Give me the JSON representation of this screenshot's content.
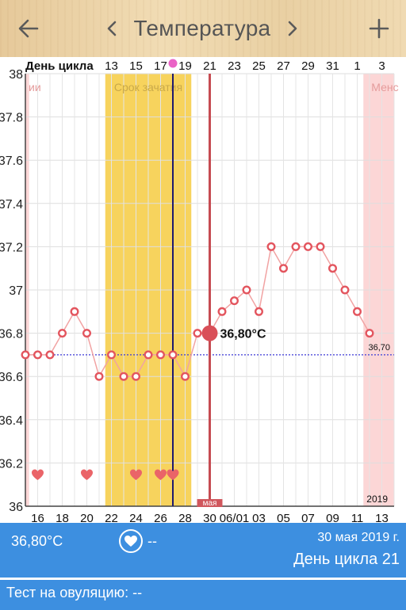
{
  "header": {
    "title": "Температура",
    "back_icon": "arrow-left-icon",
    "prev_icon": "chevron-left-icon",
    "next_icon": "chevron-right-icon",
    "add_icon": "plus-icon"
  },
  "chart_data": {
    "type": "line",
    "top_axis_label": "День цикла",
    "top_ticks": [
      "13",
      "15",
      "17",
      "19",
      "21",
      "23",
      "25",
      "27",
      "29",
      "31",
      "1",
      "3"
    ],
    "bottom_ticks": [
      "16",
      "18",
      "20",
      "22",
      "24",
      "26",
      "28",
      "30",
      "06/01",
      "03",
      "05",
      "07",
      "09",
      "11",
      "13"
    ],
    "y_ticks": [
      "38",
      "37.8",
      "37.6",
      "37.4",
      "37.2",
      "37",
      "36.8",
      "36.6",
      "36.4",
      "36.2",
      "36"
    ],
    "ylim": [
      36.0,
      38.0
    ],
    "bottom_start": "2019-05-15",
    "values": [
      36.7,
      36.7,
      36.7,
      36.8,
      36.9,
      36.8,
      36.6,
      36.7,
      36.6,
      36.6,
      36.7,
      36.7,
      36.7,
      36.6,
      36.8,
      36.8,
      36.9,
      36.95,
      37.0,
      36.9,
      37.2,
      37.1,
      37.2,
      37.2,
      37.2,
      37.1,
      37.0,
      36.9,
      36.8
    ],
    "selected_index": 15,
    "selected_label": "36,80°C",
    "baseline_value": 36.7,
    "baseline_label": "36,70",
    "fertile_window": {
      "label": "Срок зачатия",
      "start": 6.5,
      "end": 13.5
    },
    "menstruation_left": {
      "label": "ии",
      "end": 0.3
    },
    "menstruation_right": {
      "label": "Менс",
      "start": 27.5
    },
    "ovulation_index": 12,
    "heart_indices": [
      1,
      5,
      9,
      11,
      12
    ],
    "month_marker": "мая",
    "year_label": "2019",
    "colors": {
      "fertile": "#f7d35d",
      "menstruation": "#fcd6d6",
      "line": "#f1a3a3",
      "point": "#e3555e",
      "selected_line": "#c64b52",
      "ovulation_line": "#1f1a6e",
      "baseline": "#3d3ad6",
      "ovulation_marker": "#ea63c6"
    }
  },
  "footer": {
    "temperature": "36,80°C",
    "heart_icon": "heart-icon",
    "intercourse_value": "--",
    "date": "30 мая 2019 г.",
    "cycle_day": "День цикла 21",
    "ovulation_test": "Тест на овуляцию: --"
  }
}
